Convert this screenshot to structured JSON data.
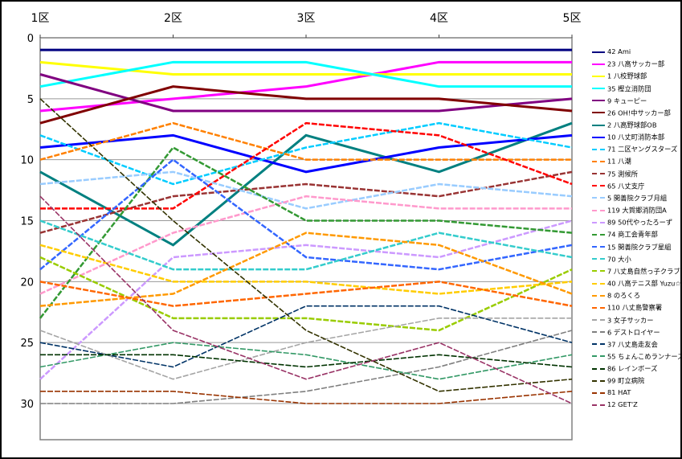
{
  "chart_data": {
    "type": "line",
    "title": "",
    "xlabel": "",
    "ylabel": "",
    "categories": [
      "1区",
      "2区",
      "3区",
      "4区",
      "5区"
    ],
    "y_axis": {
      "ticks": [
        0,
        5,
        10,
        15,
        20,
        25,
        30
      ],
      "range": [
        0,
        33
      ],
      "direction": "down",
      "meaning": "rank"
    },
    "grid": true,
    "legend_position": "right",
    "series": [
      {
        "label": "42 Ami",
        "color": "#000080",
        "values": [
          1,
          1,
          1,
          1,
          1
        ]
      },
      {
        "label": "23 八高サッカー部",
        "color": "#FF00FF",
        "values": [
          6,
          5,
          4,
          2,
          2
        ]
      },
      {
        "label": "1 八校野球部",
        "color": "#FFFF00",
        "values": [
          2,
          3,
          3,
          3,
          3
        ]
      },
      {
        "label": "35 樫立消防団",
        "color": "#00FFFF",
        "values": [
          4,
          2,
          2,
          4,
          4
        ]
      },
      {
        "label": "9 キューピー",
        "color": "#800080",
        "values": [
          3,
          6,
          6,
          6,
          5
        ]
      },
      {
        "label": "26 OH!中サッカー部",
        "color": "#800000",
        "values": [
          7,
          4,
          5,
          5,
          6
        ]
      },
      {
        "label": "2 八高野球部OB",
        "color": "#008080",
        "values": [
          11,
          17,
          8,
          11,
          7
        ]
      },
      {
        "label": "10 八丈町消防本部",
        "color": "#0000FF",
        "values": [
          9,
          8,
          11,
          9,
          8
        ]
      },
      {
        "label": "71 二区ヤングスターズ",
        "color": "#00CCFF",
        "values": [
          8,
          12,
          9,
          7,
          9
        ]
      },
      {
        "label": "11 八潮",
        "color": "#FF8000",
        "values": [
          10,
          7,
          10,
          10,
          10
        ]
      },
      {
        "label": "75 測候所",
        "color": "#993333",
        "values": [
          16,
          13,
          12,
          13,
          11
        ]
      },
      {
        "label": "65 八丈支庁",
        "color": "#FF0000",
        "values": [
          14,
          14,
          7,
          8,
          12
        ]
      },
      {
        "label": "5 関善院クラブ月組",
        "color": "#99CCFF",
        "values": [
          12,
          11,
          14,
          12,
          13
        ]
      },
      {
        "label": "119 大賀郷消防団A",
        "color": "#FF99CC",
        "values": [
          21,
          16,
          13,
          14,
          14
        ]
      },
      {
        "label": "89 50代やったろーず",
        "color": "#CC99FF",
        "values": [
          28,
          18,
          17,
          18,
          15
        ]
      },
      {
        "label": "74 商工会青年部",
        "color": "#339933",
        "values": [
          23,
          9,
          15,
          15,
          16
        ]
      },
      {
        "label": "15 関善院クラブ星組",
        "color": "#3366FF",
        "values": [
          19,
          10,
          18,
          19,
          17
        ]
      },
      {
        "label": "70 大小",
        "color": "#33CCCC",
        "values": [
          15,
          19,
          19,
          16,
          18
        ]
      },
      {
        "label": "7 八丈島自然っ子クラブ",
        "color": "#99CC00",
        "values": [
          18,
          23,
          23,
          24,
          19
        ]
      },
      {
        "label": "40 八高テニス部 Yuzu☆",
        "color": "#FFCC00",
        "values": [
          17,
          20,
          20,
          21,
          20
        ]
      },
      {
        "label": "8 のろくろ",
        "color": "#FF9900",
        "values": [
          22,
          21,
          16,
          17,
          21
        ]
      },
      {
        "label": "110 八丈島警察署",
        "color": "#FF6600",
        "values": [
          20,
          22,
          21,
          20,
          22
        ]
      },
      {
        "label": "3 女子サッカー",
        "color": "#A5A5A5",
        "values": [
          24,
          28,
          25,
          23,
          23
        ]
      },
      {
        "label": "6 デストロイヤー",
        "color": "#7F7F7F",
        "values": [
          30,
          30,
          29,
          27,
          24
        ]
      },
      {
        "label": "37 八丈島走友会",
        "color": "#003366",
        "values": [
          25,
          27,
          22,
          22,
          25
        ]
      },
      {
        "label": "55 ちょんこめランナーズ",
        "color": "#339966",
        "values": [
          27,
          25,
          26,
          28,
          26
        ]
      },
      {
        "label": "86 レインボーズ",
        "color": "#003300",
        "values": [
          26,
          26,
          27,
          26,
          27
        ]
      },
      {
        "label": "99 町立病院",
        "color": "#333300",
        "values": [
          5,
          15,
          24,
          29,
          28
        ]
      },
      {
        "label": "81 HAT",
        "color": "#993300",
        "values": [
          29,
          29,
          30,
          30,
          29
        ]
      },
      {
        "label": "12 GET'Z",
        "color": "#993366",
        "values": [
          13,
          24,
          28,
          25,
          30
        ]
      }
    ]
  }
}
